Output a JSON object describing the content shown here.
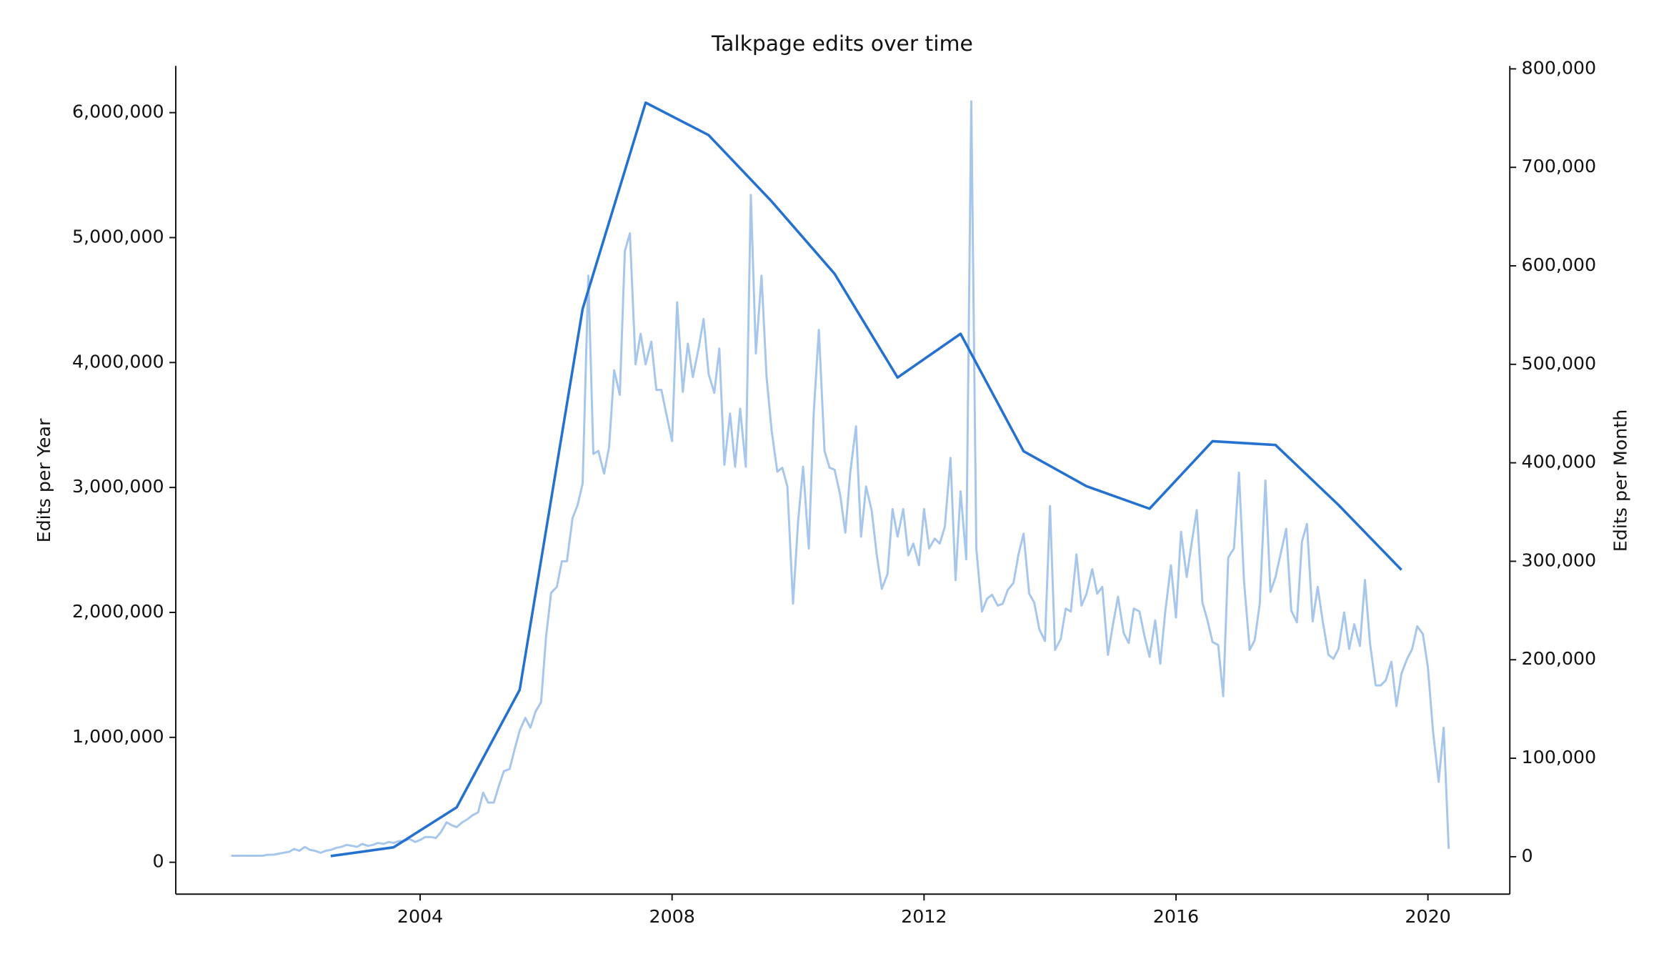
{
  "chart_data": {
    "type": "line",
    "title": "Talkpage edits over time",
    "y_label": "Edits per Year",
    "y2_label": "Edits per Month",
    "xlim": [
      2000.12,
      2021.3
    ],
    "xticks": [
      2004,
      2008,
      2012,
      2016,
      2020
    ],
    "ylim": [
      -255000,
      6374000
    ],
    "yticks": [
      0,
      {
        "value": 1000000,
        "label": "1,000,000"
      },
      {
        "value": 2000000,
        "label": "2,000,000"
      },
      {
        "value": 3000000,
        "label": "3,000,000"
      },
      {
        "value": 4000000,
        "label": "4,000,000"
      },
      {
        "value": 5000000,
        "label": "5,000,000"
      },
      {
        "value": 6000000,
        "label": "6,000,000"
      }
    ],
    "y2lim": [
      -38000,
      803000
    ],
    "y2ticks": [
      0,
      {
        "value": 100000,
        "label": "100,000"
      },
      {
        "value": 200000,
        "label": "200,000"
      },
      {
        "value": 300000,
        "label": "300,000"
      },
      {
        "value": 400000,
        "label": "400,000"
      },
      {
        "value": 500000,
        "label": "500,000"
      },
      {
        "value": 600000,
        "label": "600,000"
      },
      {
        "value": 700000,
        "label": "700,000"
      },
      {
        "value": 800000,
        "label": "800,000"
      }
    ],
    "series": [
      {
        "color": "#a6c6ec",
        "axis": "y2",
        "x": [
          2001.0,
          2001.08,
          2001.17,
          2001.25,
          2001.33,
          2001.42,
          2001.5,
          2001.58,
          2001.67,
          2001.75,
          2001.83,
          2001.92,
          2002.0,
          2002.08,
          2002.17,
          2002.25,
          2002.33,
          2002.42,
          2002.5,
          2002.58,
          2002.67,
          2002.75,
          2002.83,
          2002.92,
          2003.0,
          2003.08,
          2003.17,
          2003.25,
          2003.33,
          2003.42,
          2003.5,
          2003.58,
          2003.67,
          2003.75,
          2003.83,
          2003.92,
          2004.0,
          2004.08,
          2004.17,
          2004.25,
          2004.33,
          2004.42,
          2004.5,
          2004.58,
          2004.67,
          2004.75,
          2004.83,
          2004.92,
          2005.0,
          2005.08,
          2005.17,
          2005.25,
          2005.33,
          2005.42,
          2005.5,
          2005.58,
          2005.67,
          2005.75,
          2005.83,
          2005.92,
          2006.0,
          2006.08,
          2006.17,
          2006.25,
          2006.33,
          2006.42,
          2006.5,
          2006.58,
          2006.67,
          2006.75,
          2006.83,
          2006.92,
          2007.0,
          2007.08,
          2007.17,
          2007.25,
          2007.33,
          2007.42,
          2007.5,
          2007.58,
          2007.67,
          2007.75,
          2007.83,
          2007.92,
          2008.0,
          2008.08,
          2008.17,
          2008.25,
          2008.33,
          2008.42,
          2008.5,
          2008.58,
          2008.67,
          2008.75,
          2008.83,
          2008.92,
          2009.0,
          2009.08,
          2009.17,
          2009.25,
          2009.33,
          2009.42,
          2009.5,
          2009.58,
          2009.67,
          2009.75,
          2009.83,
          2009.92,
          2010.0,
          2010.08,
          2010.17,
          2010.25,
          2010.33,
          2010.42,
          2010.5,
          2010.58,
          2010.67,
          2010.75,
          2010.83,
          2010.92,
          2011.0,
          2011.08,
          2011.17,
          2011.25,
          2011.33,
          2011.42,
          2011.5,
          2011.58,
          2011.67,
          2011.75,
          2011.83,
          2011.92,
          2012.0,
          2012.08,
          2012.17,
          2012.25,
          2012.33,
          2012.42,
          2012.5,
          2012.58,
          2012.67,
          2012.75,
          2012.83,
          2012.92,
          2013.0,
          2013.08,
          2013.17,
          2013.25,
          2013.33,
          2013.42,
          2013.5,
          2013.58,
          2013.67,
          2013.75,
          2013.83,
          2013.92,
          2014.0,
          2014.08,
          2014.17,
          2014.25,
          2014.33,
          2014.42,
          2014.5,
          2014.58,
          2014.67,
          2014.75,
          2014.83,
          2014.92,
          2015.0,
          2015.08,
          2015.17,
          2015.25,
          2015.33,
          2015.42,
          2015.5,
          2015.58,
          2015.67,
          2015.75,
          2015.83,
          2015.92,
          2016.0,
          2016.08,
          2016.17,
          2016.25,
          2016.33,
          2016.42,
          2016.5,
          2016.58,
          2016.67,
          2016.75,
          2016.83,
          2016.92,
          2017.0,
          2017.08,
          2017.17,
          2017.25,
          2017.33,
          2017.42,
          2017.5,
          2017.58,
          2017.67,
          2017.75,
          2017.83,
          2017.92,
          2018.0,
          2018.08,
          2018.17,
          2018.25,
          2018.33,
          2018.42,
          2018.5,
          2018.58,
          2018.67,
          2018.75,
          2018.83,
          2018.92,
          2019.0,
          2019.08,
          2019.17,
          2019.25,
          2019.33,
          2019.42,
          2019.5,
          2019.58,
          2019.67,
          2019.75,
          2019.83,
          2019.92,
          2020.0,
          2020.08,
          2020.17,
          2020.25,
          2020.33
        ],
        "values": [
          1000,
          1000,
          1000,
          1000,
          1000,
          1000,
          1000,
          2000,
          2000,
          3000,
          4000,
          5000,
          8000,
          6000,
          10000,
          7000,
          6000,
          4000,
          6000,
          7000,
          9000,
          10000,
          12000,
          11000,
          10000,
          13000,
          11000,
          12000,
          14000,
          13000,
          15000,
          14000,
          16000,
          16000,
          18000,
          15000,
          17000,
          20000,
          20000,
          19000,
          25000,
          35000,
          32000,
          30000,
          35000,
          38000,
          42000,
          45000,
          65000,
          55000,
          55000,
          72000,
          87000,
          89000,
          109000,
          128000,
          141000,
          131000,
          147000,
          157000,
          224000,
          268000,
          274000,
          300000,
          300000,
          344000,
          357000,
          379000,
          590000,
          409000,
          412000,
          389000,
          416000,
          494000,
          469000,
          615000,
          633000,
          500000,
          531000,
          500000,
          523000,
          474000,
          474000,
          446000,
          422000,
          563000,
          472000,
          521000,
          487000,
          516000,
          546000,
          490000,
          471000,
          516000,
          398000,
          450000,
          396000,
          455000,
          396000,
          672000,
          511000,
          590000,
          487000,
          433000,
          391000,
          395000,
          376000,
          257000,
          340000,
          396000,
          313000,
          452000,
          535000,
          412000,
          395000,
          393000,
          367000,
          329000,
          391000,
          437000,
          325000,
          376000,
          351000,
          306000,
          272000,
          287000,
          353000,
          325000,
          353000,
          306000,
          318000,
          296000,
          353000,
          313000,
          323000,
          318000,
          335000,
          405000,
          281000,
          371000,
          302000,
          767000,
          313000,
          249000,
          262000,
          266000,
          255000,
          257000,
          271000,
          278000,
          307000,
          328000,
          267000,
          258000,
          231000,
          219000,
          356000,
          210000,
          221000,
          252000,
          249000,
          307000,
          255000,
          267000,
          292000,
          267000,
          274000,
          205000,
          236000,
          264000,
          227000,
          217000,
          252000,
          249000,
          224000,
          203000,
          240000,
          196000,
          249000,
          296000,
          243000,
          330000,
          284000,
          319000,
          352000,
          258000,
          240000,
          218000,
          215000,
          163000,
          304000,
          313000,
          390000,
          280000,
          210000,
          220000,
          257000,
          382000,
          269000,
          284000,
          310000,
          333000,
          250000,
          238000,
          320000,
          338000,
          239000,
          274000,
          239000,
          205000,
          201000,
          211000,
          248000,
          211000,
          236000,
          214000,
          281000,
          217000,
          174000,
          174000,
          179000,
          198000,
          153000,
          186000,
          201000,
          211000,
          234000,
          226000,
          192000,
          128000,
          76000,
          131000,
          8000
        ]
      },
      {
        "color": "#2471d0",
        "axis": "y",
        "x": [
          2002.58,
          2003.58,
          2004.58,
          2005.58,
          2006.58,
          2007.58,
          2008.58,
          2009.58,
          2010.58,
          2011.58,
          2012.58,
          2013.58,
          2014.58,
          2015.58,
          2016.58,
          2017.58,
          2018.58,
          2019.58
        ],
        "values": [
          50000,
          120000,
          440000,
          1380000,
          4430000,
          6080000,
          5820000,
          5290000,
          4710000,
          3880000,
          4230000,
          3290000,
          3010000,
          2830000,
          3370000,
          3340000,
          2860000,
          2340000
        ]
      }
    ]
  }
}
